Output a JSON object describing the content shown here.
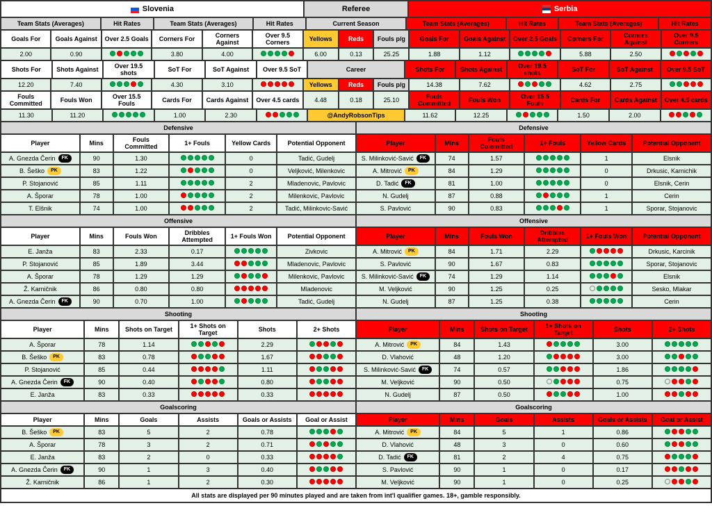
{
  "colors": {
    "green": "#00a84f",
    "red": "#ff0000",
    "lightgreen": "#e2f0e6",
    "gray": "#d9d9d9",
    "yellow": "#ffc931"
  },
  "team_left": "Slovenia",
  "team_right": "Serbia",
  "referee_label": "Referee",
  "current_season_label": "Current Season",
  "career_label": "Career",
  "handle": "@AndyRobsonTips",
  "footer": "All stats are displayed per 90 minutes played and are taken from int'l qualifier games. 18+, gamble responsibly.",
  "ref_hdr": [
    "Yellows",
    "Reds",
    "Fouls p/g"
  ],
  "ref_season": [
    "6.00",
    "0.13",
    "25.25"
  ],
  "ref_career": [
    "4.48",
    "0.18",
    "25.10"
  ],
  "stats_hdr": [
    "Team Stats (Averages)",
    "Hit Rates",
    "Team Stats (Averages)",
    "Hit Rates"
  ],
  "row1_labels": [
    "Goals For",
    "Goals Against",
    "Over 2.5 Goals",
    "Corners For",
    "Corners Against",
    "Over 9.5 Corners"
  ],
  "row2_labels": [
    "Shots For",
    "Shots Against",
    "Over 19.5 shots",
    "SoT For",
    "SoT Against",
    "Over 9.5 SoT"
  ],
  "row3_labels": [
    "Fouls Committed",
    "Fouls Won",
    "Over 15.5 Fouls",
    "Cards For",
    "Cards Against",
    "Over 4.5 cards"
  ],
  "left": {
    "r1": [
      "2.00",
      "0.90",
      "grggg",
      "3.80",
      "4.00",
      "ggggr"
    ],
    "r2": [
      "12.20",
      "7.40",
      "gggrg",
      "4.30",
      "3.10",
      "rrrrr"
    ],
    "r3": [
      "11.30",
      "11.20",
      "ggggg",
      "1.00",
      "2.30",
      "rrggg"
    ]
  },
  "right": {
    "r1": [
      "1.88",
      "1.12",
      "ggggr",
      "5.88",
      "2.50",
      "rgrgr"
    ],
    "r2": [
      "14.38",
      "7.62",
      "rgrgg",
      "4.62",
      "2.75",
      "ggrrr"
    ],
    "r3": [
      "11.62",
      "12.25",
      "grggg",
      "1.50",
      "2.00",
      "rrgrg"
    ]
  },
  "sec_def": "Defensive",
  "sec_off": "Offensive",
  "sec_shoot": "Shooting",
  "sec_goal": "Goalscoring",
  "def_hdr": [
    "Player",
    "Mins",
    "Fouls Committed",
    "1+ Fouls",
    "Yellow Cards",
    "Potential Opponent"
  ],
  "off_hdr": [
    "Player",
    "Mins",
    "Fouls Won",
    "Dribbles Attempted",
    "1+ Fouls Won",
    "Potential Opponent"
  ],
  "shoot_hdr": [
    "Player",
    "Mins",
    "Shots on Target",
    "1+ Shots on Target",
    "Shots",
    "2+ Shots"
  ],
  "goal_hdr": [
    "Player",
    "Mins",
    "Goals",
    "Assists",
    "Goals or Assists",
    "Goal or Assist"
  ],
  "left_def": [
    {
      "p": "A. Gnezda Čerin",
      "b": "FK",
      "m": "90",
      "fc": "1.30",
      "f1": "ggggg",
      "yc": "0",
      "opp": "Tadić, Gudelj"
    },
    {
      "p": "B. Šeško",
      "b": "PK",
      "m": "83",
      "fc": "1.22",
      "f1": "grggg",
      "yc": "0",
      "opp": "Veljković, Milenkovic"
    },
    {
      "p": "P. Stojanović",
      "b": "",
      "m": "85",
      "fc": "1.11",
      "f1": "ggggg",
      "yc": "2",
      "opp": "Mladenovic, Pavlovic"
    },
    {
      "p": "A. Šporar",
      "b": "",
      "m": "78",
      "fc": "1.00",
      "f1": "rgggg",
      "yc": "2",
      "opp": "Milenkovic, Pavlovic"
    },
    {
      "p": "T. Elšnik",
      "b": "",
      "m": "74",
      "fc": "1.00",
      "f1": "rrggg",
      "yc": "2",
      "opp": "Tadić, Milinkovic-Savić"
    }
  ],
  "right_def": [
    {
      "p": "S. Milinković-Savić",
      "b": "FK",
      "m": "74",
      "fc": "1.57",
      "f1": "ggggg",
      "yc": "1",
      "opp": "Elsnik"
    },
    {
      "p": "A. Mitrović",
      "b": "PK",
      "m": "84",
      "fc": "1.29",
      "f1": "ggggg",
      "yc": "0",
      "opp": "Drkusic, Karnichik"
    },
    {
      "p": "D. Tadić",
      "b": "FK",
      "m": "81",
      "fc": "1.00",
      "f1": "ggggg",
      "yc": "0",
      "opp": "Elsnik, Cerin"
    },
    {
      "p": "N. Gudelj",
      "b": "",
      "m": "87",
      "fc": "0.88",
      "f1": "grggg",
      "yc": "1",
      "opp": "Cerin"
    },
    {
      "p": "S. Pavlović",
      "b": "",
      "m": "90",
      "fc": "0.83",
      "f1": "gggrg",
      "yc": "1",
      "opp": "Sporar, Stojanovic"
    }
  ],
  "left_off": [
    {
      "p": "E. Janža",
      "b": "",
      "m": "83",
      "fc": "2.33",
      "da": "0.17",
      "fw": "ggggg",
      "opp": "Zivkovic"
    },
    {
      "p": "P. Stojanović",
      "b": "",
      "m": "85",
      "fc": "1.89",
      "da": "3.44",
      "fw": "rrggg",
      "opp": "Mladenovic, Pavlovic"
    },
    {
      "p": "A. Šporar",
      "b": "",
      "m": "78",
      "fc": "1.29",
      "da": "1.29",
      "fw": "grggr",
      "opp": "Milenkovic, Pavlovic"
    },
    {
      "p": "Ž. Karničnik",
      "b": "",
      "m": "86",
      "fc": "0.80",
      "da": "0.80",
      "fw": "rrrrr",
      "opp": "Mladenovic"
    },
    {
      "p": "A. Gnezda Čerin",
      "b": "FK",
      "m": "90",
      "fc": "0.70",
      "da": "1.00",
      "fw": "grggg",
      "opp": "Tadić, Gudelj"
    }
  ],
  "right_off": [
    {
      "p": "A. Mitrović",
      "b": "PK",
      "m": "84",
      "fc": "1.71",
      "da": "2.29",
      "fw": "grrrr",
      "opp": "Drkusic, Karcinik"
    },
    {
      "p": "S. Pavlović",
      "b": "",
      "m": "90",
      "fc": "1.67",
      "da": "0.83",
      "fw": "ggggg",
      "opp": "Sporar, Stojanovic"
    },
    {
      "p": "S. Milinković-Savić",
      "b": "FK",
      "m": "74",
      "fc": "1.29",
      "da": "1.14",
      "fw": "gggrg",
      "opp": "Elsnik"
    },
    {
      "p": "M. Veljković",
      "b": "",
      "m": "90",
      "fc": "1.25",
      "da": "0.25",
      "fw": "ogggg",
      "opp": "Sesko, Mlakar"
    },
    {
      "p": "N. Gudelj",
      "b": "",
      "m": "87",
      "fc": "1.25",
      "da": "0.38",
      "fw": "ggggg",
      "opp": "Cerin"
    }
  ],
  "left_shoot": [
    {
      "p": "A. Šporar",
      "b": "",
      "m": "78",
      "st": "1.14",
      "s1": "ggrgr",
      "sh": "2.29",
      "s2": "grrgr"
    },
    {
      "p": "B. Šeško",
      "b": "PK",
      "m": "83",
      "st": "0.78",
      "s1": "rggrr",
      "sh": "1.67",
      "s2": "rrggr"
    },
    {
      "p": "P. Stojanović",
      "b": "",
      "m": "85",
      "st": "0.44",
      "s1": "rrrrg",
      "sh": "1.11",
      "s2": "rggrr"
    },
    {
      "p": "A. Gnezda Čerin",
      "b": "FK",
      "m": "90",
      "st": "0.40",
      "s1": "rgrrg",
      "sh": "0.80",
      "s2": "rggrr"
    },
    {
      "p": "E. Janža",
      "b": "",
      "m": "83",
      "st": "0.33",
      "s1": "rrrrr",
      "sh": "0.33",
      "s2": "rrrrr"
    }
  ],
  "right_shoot": [
    {
      "p": "A. Mitrović",
      "b": "PK",
      "m": "84",
      "st": "1.43",
      "s1": "rgggg",
      "sh": "3.00",
      "s2": "ggggg"
    },
    {
      "p": "D. Vlahović",
      "b": "",
      "m": "48",
      "st": "1.20",
      "s1": "grrrr",
      "sh": "3.00",
      "s2": "ggrgg"
    },
    {
      "p": "S. Milinković-Savić",
      "b": "FK",
      "m": "74",
      "st": "0.57",
      "s1": "ggrrr",
      "sh": "1.86",
      "s2": "ggggr"
    },
    {
      "p": "M. Veljković",
      "b": "",
      "m": "90",
      "st": "0.50",
      "s1": "ogrrr",
      "sh": "0.75",
      "s2": "orrgr"
    },
    {
      "p": "N. Gudelj",
      "b": "",
      "m": "87",
      "st": "0.50",
      "s1": "rggrr",
      "sh": "1.00",
      "s2": "rrgrr"
    }
  ],
  "left_goal": [
    {
      "p": "B. Šeško",
      "b": "PK",
      "m": "83",
      "g": "5",
      "a": "2",
      "ga": "0.78",
      "d": "gggrg"
    },
    {
      "p": "A. Šporar",
      "b": "",
      "m": "78",
      "g": "3",
      "a": "2",
      "ga": "0.71",
      "d": "rgrgg"
    },
    {
      "p": "E. Janža",
      "b": "",
      "m": "83",
      "g": "2",
      "a": "0",
      "ga": "0.33",
      "d": "rrrrg"
    },
    {
      "p": "A. Gnezda Čerin",
      "b": "FK",
      "m": "90",
      "g": "1",
      "a": "3",
      "ga": "0.40",
      "d": "rggrr"
    },
    {
      "p": "Ž. Karničnik",
      "b": "",
      "m": "86",
      "g": "1",
      "a": "2",
      "ga": "0.30",
      "d": "rrrrr"
    }
  ],
  "right_goal": [
    {
      "p": "A. Mitrović",
      "b": "PK",
      "m": "84",
      "g": "5",
      "a": "1",
      "ga": "0.86",
      "d": "grrgg"
    },
    {
      "p": "D. Vlahović",
      "b": "",
      "m": "48",
      "g": "3",
      "a": "0",
      "ga": "0.60",
      "d": "grrgg"
    },
    {
      "p": "D. Tadić",
      "b": "FK",
      "m": "81",
      "g": "2",
      "a": "4",
      "ga": "0.75",
      "d": "rgggr"
    },
    {
      "p": "S. Pavlović",
      "b": "",
      "m": "90",
      "g": "1",
      "a": "0",
      "ga": "0.17",
      "d": "rrgrr"
    },
    {
      "p": "M. Veljković",
      "b": "",
      "m": "90",
      "g": "1",
      "a": "0",
      "ga": "0.25",
      "d": "orrgr"
    }
  ]
}
